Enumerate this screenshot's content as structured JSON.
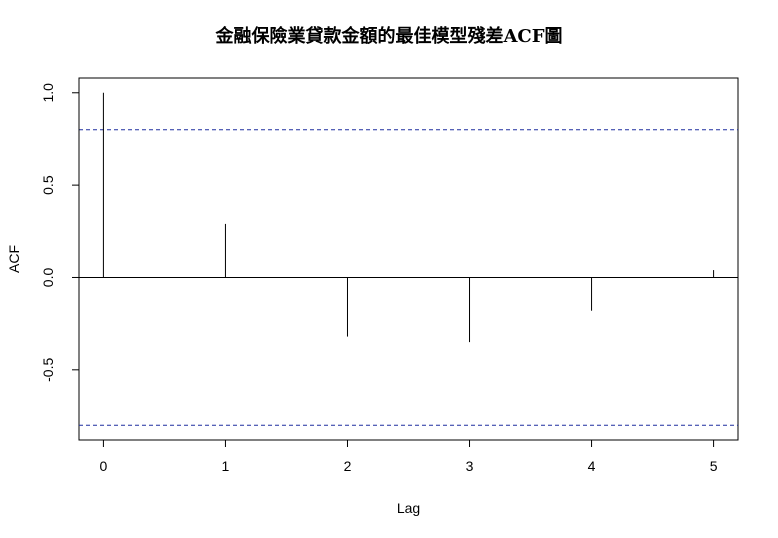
{
  "chart_data": {
    "type": "bar",
    "title": "金融保險業貸款金額的最佳模型殘差ACF圖",
    "xlabel": "Lag",
    "ylabel": "ACF",
    "lags": [
      0,
      1,
      2,
      3,
      4,
      5
    ],
    "acf": [
      1.0,
      0.29,
      -0.32,
      -0.35,
      -0.18,
      0.04
    ],
    "conf_bounds": [
      0.8,
      -0.8
    ],
    "xlim": [
      -0.2,
      5.2
    ],
    "ylim": [
      -0.88,
      1.08
    ],
    "x_ticks": [
      "0",
      "1",
      "2",
      "3",
      "4",
      "5"
    ],
    "y_ticks": [
      "-0.5",
      "0.0",
      "0.5",
      "1.0"
    ],
    "colors": {
      "spike": "#000000",
      "bound": "#1f2f9f",
      "frame": "#000000"
    }
  }
}
